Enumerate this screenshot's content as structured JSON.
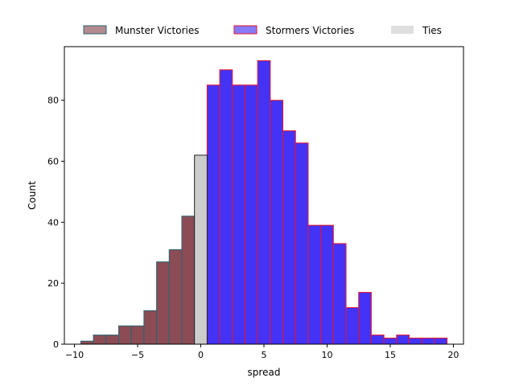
{
  "chart_data": {
    "type": "bar",
    "title": "",
    "xlabel": "spread",
    "ylabel": "Count",
    "xlim": [
      -10.8,
      20.8
    ],
    "ylim": [
      0,
      97.6
    ],
    "x_ticks": [
      -10,
      -5,
      0,
      5,
      10,
      15,
      20
    ],
    "y_ticks": [
      0,
      20,
      40,
      60,
      80
    ],
    "bin_width": 1,
    "grid": false,
    "legend_position": "top-center",
    "series": [
      {
        "name": "Munster Victories",
        "fill": "#8b4c55",
        "stroke": "#2a6373",
        "bins": [
          {
            "x": -9,
            "count": 1
          },
          {
            "x": -8,
            "count": 3
          },
          {
            "x": -7,
            "count": 3
          },
          {
            "x": -6,
            "count": 6
          },
          {
            "x": -5,
            "count": 6
          },
          {
            "x": -4,
            "count": 11
          },
          {
            "x": -3,
            "count": 27
          },
          {
            "x": -2,
            "count": 31
          },
          {
            "x": -1,
            "count": 42
          }
        ]
      },
      {
        "name": "Stormers Victories",
        "fill": "#4433f5",
        "stroke": "#e8142c",
        "bins": [
          {
            "x": 1,
            "count": 85
          },
          {
            "x": 2,
            "count": 90
          },
          {
            "x": 3,
            "count": 85
          },
          {
            "x": 4,
            "count": 85
          },
          {
            "x": 5,
            "count": 93
          },
          {
            "x": 6,
            "count": 80
          },
          {
            "x": 7,
            "count": 70
          },
          {
            "x": 8,
            "count": 66
          },
          {
            "x": 9,
            "count": 39
          },
          {
            "x": 10,
            "count": 39
          },
          {
            "x": 11,
            "count": 33
          },
          {
            "x": 12,
            "count": 12
          },
          {
            "x": 13,
            "count": 17
          },
          {
            "x": 14,
            "count": 3
          },
          {
            "x": 15,
            "count": 2
          },
          {
            "x": 16,
            "count": 3
          },
          {
            "x": 17,
            "count": 2
          },
          {
            "x": 18,
            "count": 2
          },
          {
            "x": 19,
            "count": 2
          }
        ]
      },
      {
        "name": "Ties",
        "fill": "#cccccc",
        "stroke": "#222222",
        "bins": [
          {
            "x": 0,
            "count": 62
          }
        ]
      }
    ]
  }
}
